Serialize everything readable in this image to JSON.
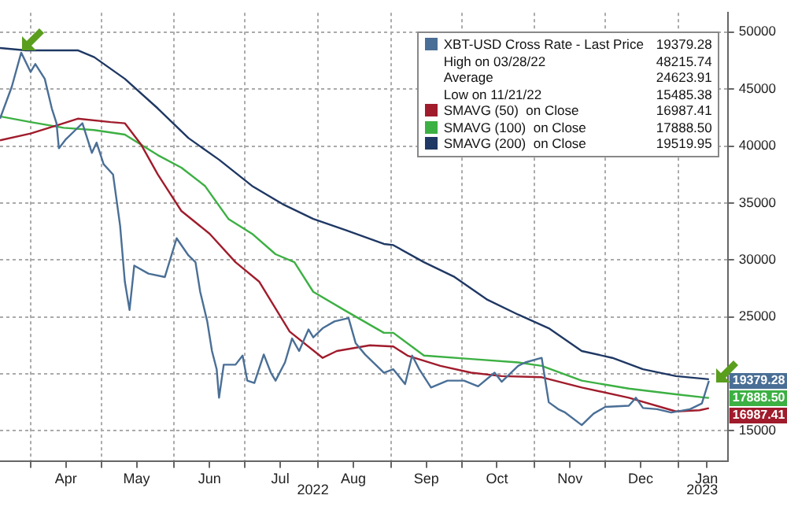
{
  "chart_data": {
    "type": "line",
    "marker": "none",
    "line_style": "solid",
    "grid": true,
    "legend": "top right",
    "xlim": [
      "2022-03-19",
      "2023-01-22"
    ],
    "xticks": [
      {
        "value": "2022-04-01",
        "label": null
      },
      {
        "value": "2022-04-16",
        "label": "Apr"
      },
      {
        "value": "2022-05-01",
        "label": null
      },
      {
        "value": "2022-05-16",
        "label": "May"
      },
      {
        "value": "2022-06-01",
        "label": null
      },
      {
        "value": "2022-06-16",
        "label": "Jun"
      },
      {
        "value": "2022-07-01",
        "label": null
      },
      {
        "value": "2022-07-16",
        "label": "Jul"
      },
      {
        "value": "2022-08-01",
        "label": null
      },
      {
        "value": "2022-08-16",
        "label": "Aug"
      },
      {
        "value": "2022-09-01",
        "label": null
      },
      {
        "value": "2022-09-16",
        "label": "Sep"
      },
      {
        "value": "2022-10-01",
        "label": null
      },
      {
        "value": "2022-10-16",
        "label": "Oct"
      },
      {
        "value": "2022-11-01",
        "label": null
      },
      {
        "value": "2022-11-16",
        "label": "Nov"
      },
      {
        "value": "2022-12-01",
        "label": null
      },
      {
        "value": "2022-12-16",
        "label": "Dec"
      },
      {
        "value": "2023-01-01",
        "label": null
      },
      {
        "value": "2023-01-13",
        "label": "Jan"
      }
    ],
    "ylim": [
      12300,
      51700
    ],
    "yticks": [
      15000,
      {
        "value": 20000,
        "label": null
      },
      25000,
      30000,
      35000,
      40000,
      45000,
      50000
    ],
    "annotations": [
      "19379.28",
      "High on 03/28/22",
      "48215.74",
      "Average",
      "24623.91",
      "Low on 11/21/22",
      "15485.38",
      "16987.41",
      "17888.50",
      "19519.95",
      "2022",
      "2023"
    ],
    "series": [
      {
        "name": "XBT-USD Cross Rate - Last Price",
        "color": "#4a6f96",
        "x": [
          "2022-03-19",
          "2022-03-24",
          "2022-03-28",
          "2022-04-01",
          "2022-04-03",
          "2022-04-07",
          "2022-04-10",
          "2022-04-12",
          "2022-04-13",
          "2022-04-16",
          "2022-04-20",
          "2022-04-23",
          "2022-04-27",
          "2022-04-29",
          "2022-05-02",
          "2022-05-06",
          "2022-05-09",
          "2022-05-11",
          "2022-05-13",
          "2022-05-15",
          "2022-05-21",
          "2022-05-28",
          "2022-06-02",
          "2022-06-07",
          "2022-06-10",
          "2022-06-12",
          "2022-06-15",
          "2022-06-17",
          "2022-06-19",
          "2022-06-20",
          "2022-06-22",
          "2022-06-27",
          "2022-06-30",
          "2022-07-02",
          "2022-07-05",
          "2022-07-09",
          "2022-07-12",
          "2022-07-14",
          "2022-07-18",
          "2022-07-21",
          "2022-07-24",
          "2022-07-28",
          "2022-07-30",
          "2022-08-03",
          "2022-08-08",
          "2022-08-14",
          "2022-08-17",
          "2022-08-21",
          "2022-08-26",
          "2022-08-29",
          "2022-09-02",
          "2022-09-07",
          "2022-09-10",
          "2022-09-13",
          "2022-09-18",
          "2022-09-25",
          "2022-10-02",
          "2022-10-08",
          "2022-10-15",
          "2022-10-18",
          "2022-10-25",
          "2022-10-28",
          "2022-11-04",
          "2022-11-07",
          "2022-11-11",
          "2022-11-14",
          "2022-11-21",
          "2022-11-26",
          "2022-12-01",
          "2022-12-11",
          "2022-12-14",
          "2022-12-17",
          "2022-12-23",
          "2022-12-29",
          "2023-01-06",
          "2023-01-11",
          "2023-01-14"
        ],
        "values": [
          42400,
          45200,
          48200,
          46500,
          47200,
          45900,
          43300,
          42000,
          39800,
          40600,
          41400,
          42000,
          39400,
          40300,
          38400,
          37500,
          33000,
          28100,
          25600,
          29500,
          28800,
          28500,
          31900,
          30400,
          29800,
          27200,
          24600,
          22000,
          20400,
          17900,
          20800,
          20800,
          21600,
          19400,
          19200,
          21700,
          20100,
          19400,
          21000,
          23100,
          22000,
          23900,
          23200,
          24000,
          24600,
          24900,
          22700,
          21700,
          20700,
          20100,
          20400,
          19100,
          21600,
          20400,
          18800,
          19400,
          19400,
          18900,
          20100,
          19300,
          20700,
          21000,
          21400,
          17500,
          16900,
          16600,
          15500,
          16500,
          17100,
          17200,
          17900,
          17000,
          16900,
          16600,
          16900,
          17400,
          19379.28
        ],
        "value_labels": [
          null,
          null,
          null,
          null,
          null,
          null,
          null,
          null,
          null,
          null,
          null,
          null,
          null,
          null,
          null,
          null,
          null,
          null,
          null,
          null,
          null,
          null,
          null,
          null,
          null,
          null,
          null,
          null,
          null,
          null,
          null,
          null,
          null,
          null,
          null,
          null,
          null,
          null,
          null,
          null,
          null,
          null,
          null,
          null,
          null,
          null,
          null,
          null,
          null,
          null,
          null,
          null,
          null,
          null,
          null,
          null,
          null,
          null,
          null,
          null,
          null,
          null,
          null,
          null,
          null,
          null,
          null,
          null,
          null,
          null,
          null,
          null,
          null,
          null,
          null,
          null,
          "19379.28"
        ]
      },
      {
        "name": "SMAVG (50)  on Close",
        "color": "#a01c2c",
        "x": [
          "2022-03-19",
          "2022-04-01",
          "2022-04-15",
          "2022-04-21",
          "2022-05-05",
          "2022-05-11",
          "2022-05-18",
          "2022-05-25",
          "2022-06-04",
          "2022-06-16",
          "2022-06-27",
          "2022-07-07",
          "2022-07-20",
          "2022-08-03",
          "2022-08-09",
          "2022-08-23",
          "2022-09-02",
          "2022-09-08",
          "2022-09-22",
          "2022-10-05",
          "2022-10-18",
          "2022-11-04",
          "2022-11-21",
          "2022-12-11",
          "2022-12-31",
          "2023-01-10",
          "2023-01-14"
        ],
        "values": [
          40500,
          41100,
          42000,
          42400,
          42100,
          42000,
          40100,
          37500,
          34300,
          32300,
          29800,
          28100,
          23700,
          21400,
          22000,
          22500,
          22400,
          21600,
          20700,
          20100,
          19800,
          19700,
          18800,
          17900,
          16700,
          16800,
          16987.41
        ],
        "value_labels": [
          null,
          null,
          null,
          null,
          null,
          null,
          null,
          null,
          null,
          null,
          null,
          null,
          null,
          null,
          null,
          null,
          null,
          null,
          null,
          null,
          null,
          null,
          null,
          null,
          null,
          null,
          "16987.41"
        ]
      },
      {
        "name": "SMAVG (100)  on Close",
        "color": "#3cb043",
        "x": [
          "2022-03-19",
          "2022-04-01",
          "2022-04-15",
          "2022-04-28",
          "2022-05-11",
          "2022-05-25",
          "2022-06-04",
          "2022-06-14",
          "2022-06-24",
          "2022-07-04",
          "2022-07-14",
          "2022-07-22",
          "2022-07-30",
          "2022-08-13",
          "2022-08-29",
          "2022-09-02",
          "2022-09-15",
          "2022-10-05",
          "2022-10-25",
          "2022-11-04",
          "2022-11-21",
          "2022-12-11",
          "2022-12-31",
          "2023-01-13",
          "2023-01-14"
        ],
        "values": [
          42600,
          42100,
          41600,
          41400,
          41000,
          39200,
          38100,
          36500,
          33600,
          32300,
          30500,
          29800,
          27200,
          25500,
          23600,
          23600,
          21600,
          21300,
          21000,
          20700,
          19400,
          18700,
          18200,
          17900,
          17888.5
        ],
        "value_labels": [
          null,
          null,
          null,
          null,
          null,
          null,
          null,
          null,
          null,
          null,
          null,
          null,
          null,
          null,
          null,
          null,
          null,
          null,
          null,
          null,
          null,
          null,
          null,
          null,
          "17888.50"
        ]
      },
      {
        "name": "SMAVG (200)  on Close",
        "color": "#1f3864",
        "x": [
          "2022-03-19",
          "2022-03-30",
          "2022-04-21",
          "2022-04-28",
          "2022-05-11",
          "2022-05-25",
          "2022-06-07",
          "2022-06-20",
          "2022-07-04",
          "2022-07-17",
          "2022-07-30",
          "2022-08-13",
          "2022-08-29",
          "2022-09-02",
          "2022-09-15",
          "2022-09-28",
          "2022-10-12",
          "2022-10-25",
          "2022-11-07",
          "2022-11-21",
          "2022-12-04",
          "2022-12-17",
          "2022-12-31",
          "2023-01-14"
        ],
        "values": [
          48600,
          48400,
          48400,
          47800,
          45900,
          43300,
          40700,
          38800,
          36500,
          34900,
          33600,
          32600,
          31400,
          31300,
          29800,
          28500,
          26500,
          25200,
          24000,
          22000,
          21400,
          20400,
          19800,
          19519.95
        ]
      }
    ]
  }
}
